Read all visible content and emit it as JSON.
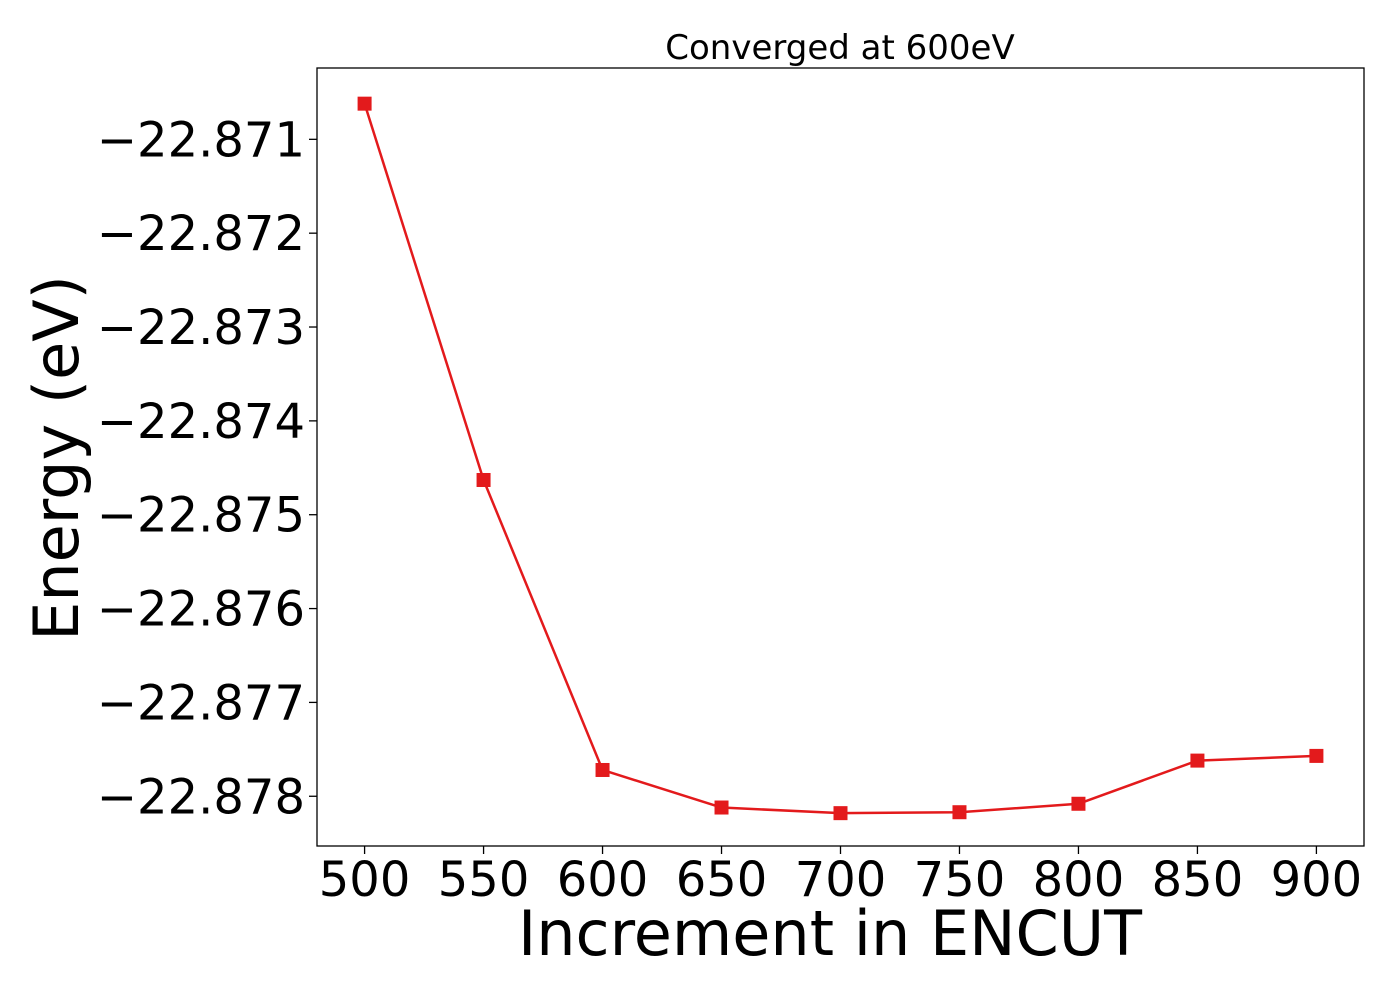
{
  "chart_data": {
    "type": "line",
    "title": "Converged at 600eV",
    "xlabel": "Increment in ENCUT",
    "ylabel": "Energy (eV)",
    "x": [
      500,
      550,
      600,
      650,
      700,
      750,
      800,
      850,
      900
    ],
    "series": [
      {
        "values": [
          -22.87062,
          -22.87463,
          -22.87772,
          -22.87812,
          -22.87818,
          -22.87817,
          -22.87808,
          -22.87762,
          -22.87757
        ],
        "color": "#e31a1c",
        "marker": "square"
      }
    ],
    "xticks": [
      500,
      550,
      600,
      650,
      700,
      750,
      800,
      850,
      900
    ],
    "xtick_labels": [
      "500",
      "550",
      "600",
      "650",
      "700",
      "750",
      "800",
      "850",
      "900"
    ],
    "yticks": [
      -22.871,
      -22.872,
      -22.873,
      -22.874,
      -22.875,
      -22.876,
      -22.877,
      -22.878
    ],
    "ytick_labels": [
      "−22.871",
      "−22.872",
      "−22.873",
      "−22.874",
      "−22.875",
      "−22.876",
      "−22.877",
      "−22.878"
    ],
    "xlim": [
      480,
      920
    ],
    "ylim": [
      -22.87853,
      -22.87024
    ],
    "grid": false,
    "legend": "none"
  }
}
